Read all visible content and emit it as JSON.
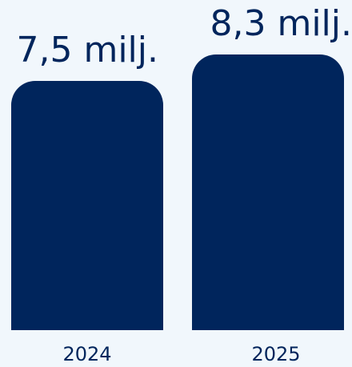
{
  "colors": {
    "background": "#f1f7fc",
    "bar": "#00255c",
    "text": "#00255c"
  },
  "chart_data": {
    "type": "bar",
    "categories": [
      "2024",
      "2025"
    ],
    "values": [
      7.5,
      8.3
    ],
    "value_labels": [
      "7,5 milj.",
      "8,3 milj."
    ],
    "title": "",
    "xlabel": "",
    "ylabel": "",
    "unit": "milj.",
    "grid": false,
    "legend": "none"
  }
}
